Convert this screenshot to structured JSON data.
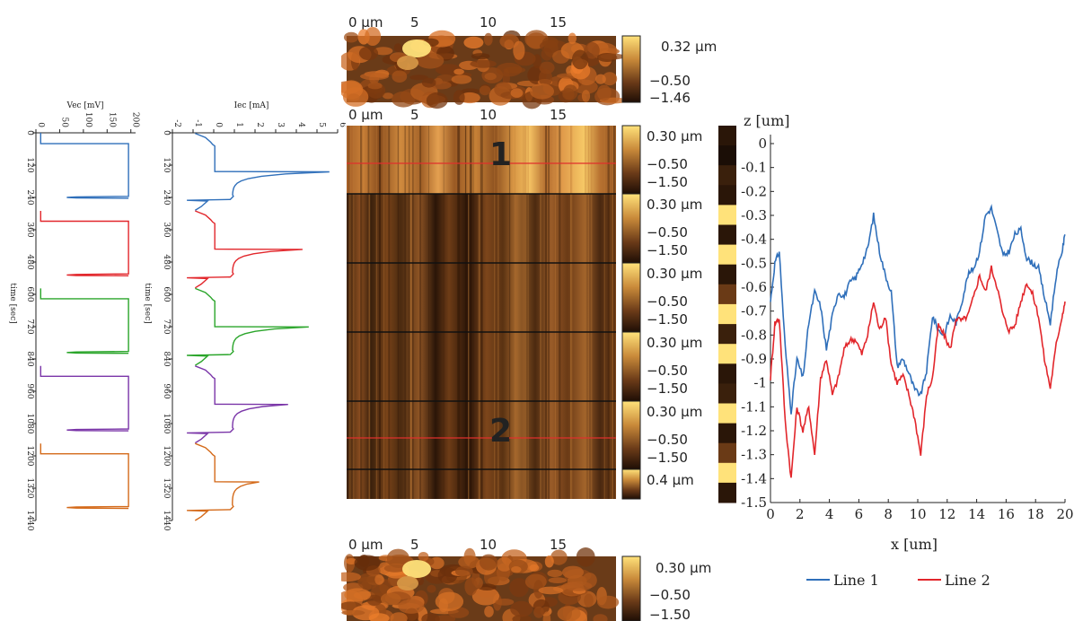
{
  "colors": {
    "line1": "#2f6fba",
    "line2": "#e2262b",
    "blue": "#2f6fba",
    "red": "#e2262b",
    "green": "#2aa52a",
    "purple": "#7a35a8",
    "orange": "#d46a1a",
    "marker": "#e0302c",
    "afm_dark": "#2b1608",
    "afm_mid": "#a8612a",
    "afm_light": "#ffe27a"
  },
  "afm_top": {
    "x_ticks": [
      "0 µm",
      "5",
      "10",
      "15"
    ],
    "colorbar_labels": [
      "0.32 µm",
      "−0.50",
      "−1.46"
    ]
  },
  "afm_main": {
    "x_ticks": [
      "0 µm",
      "5",
      "10",
      "15"
    ],
    "markers": [
      "1",
      "2"
    ],
    "segments": [
      {
        "labels": [
          "0.30 µm",
          "−0.50",
          "−1.50"
        ]
      },
      {
        "labels": [
          "0.30 µm",
          "−0.50",
          "−1.50"
        ]
      },
      {
        "labels": [
          "0.30 µm",
          "−0.50",
          "−1.50"
        ]
      },
      {
        "labels": [
          "0.30 µm",
          "−0.50",
          "−1.50"
        ]
      },
      {
        "labels": [
          "0.30 µm",
          "−0.50",
          "−1.50"
        ]
      },
      {
        "labels": [
          "0.4 µm"
        ]
      }
    ]
  },
  "afm_bottom": {
    "x_ticks": [
      "0 µm",
      "5",
      "10",
      "15"
    ],
    "colorbar_labels": [
      "0.30 µm",
      "−0.50",
      "−1.50"
    ]
  },
  "chart_data": [
    {
      "type": "line",
      "xlabel": "time [sec]",
      "ylabel": "Vec [mV]",
      "x_ticks": [
        0,
        120,
        240,
        360,
        480,
        600,
        720,
        840,
        960,
        1080,
        1200,
        1320,
        1440
      ],
      "y_ticks": [
        0,
        50,
        100,
        150,
        200
      ],
      "xlim": [
        0,
        1440
      ],
      "ylim": [
        0,
        210
      ],
      "cycles": [
        {
          "color": "blue",
          "start": 0,
          "end": 288
        },
        {
          "color": "red",
          "start": 288,
          "end": 576
        },
        {
          "color": "green",
          "start": 576,
          "end": 864
        },
        {
          "color": "purple",
          "start": 864,
          "end": 1152
        },
        {
          "color": "orange",
          "start": 1152,
          "end": 1440
        }
      ],
      "low_mV": 10,
      "high_mV": 195,
      "dip_mV": 85
    },
    {
      "type": "line",
      "xlabel": "time [sec]",
      "ylabel": "Iec [mA]",
      "x_ticks": [
        0,
        120,
        240,
        360,
        480,
        600,
        720,
        840,
        960,
        1080,
        1200,
        1320,
        1440
      ],
      "y_ticks": [
        -2,
        -1,
        0,
        1,
        2,
        3,
        4,
        5,
        6
      ],
      "xlim": [
        0,
        1440
      ],
      "ylim": [
        -2,
        6
      ],
      "cycles": [
        {
          "color": "blue",
          "start": 0,
          "end": 288,
          "peak": 5.6
        },
        {
          "color": "red",
          "start": 288,
          "end": 576,
          "peak": 4.3
        },
        {
          "color": "green",
          "start": 576,
          "end": 864,
          "peak": 4.6
        },
        {
          "color": "purple",
          "start": 864,
          "end": 1152,
          "peak": 3.6
        },
        {
          "color": "orange",
          "start": 1152,
          "end": 1440,
          "peak": 2.2
        }
      ]
    },
    {
      "type": "line",
      "xlabel": "x [um]",
      "ylabel": "z [um]",
      "xlim": [
        0,
        20
      ],
      "ylim": [
        -1.5,
        0
      ],
      "x_ticks": [
        0,
        2,
        4,
        6,
        8,
        10,
        12,
        14,
        16,
        18,
        20
      ],
      "y_ticks": [
        0,
        -0.1,
        -0.2,
        -0.3,
        -0.4,
        -0.5,
        -0.6,
        -0.7,
        -0.8,
        -0.9,
        -1,
        -1.1,
        -1.2,
        -1.3,
        -1.4,
        -1.5
      ],
      "legend_placement": "bottom",
      "series": [
        {
          "name": "Line 1",
          "color": "line1",
          "x": [
            0,
            0.3,
            0.6,
            1.0,
            1.4,
            1.8,
            2.2,
            2.6,
            3.0,
            3.4,
            3.8,
            4.2,
            4.6,
            5.0,
            5.4,
            5.8,
            6.2,
            6.6,
            7.0,
            7.4,
            7.8,
            8.2,
            8.6,
            9.0,
            9.4,
            9.8,
            10.2,
            10.6,
            11.0,
            11.4,
            11.8,
            12.2,
            12.6,
            13.0,
            13.4,
            13.8,
            14.2,
            14.6,
            15.0,
            15.4,
            15.8,
            16.2,
            16.6,
            17.0,
            17.4,
            17.8,
            18.2,
            18.6,
            19.0,
            19.4,
            19.8,
            20.0
          ],
          "y": [
            -0.66,
            -0.5,
            -0.45,
            -0.85,
            -1.12,
            -0.9,
            -0.98,
            -0.75,
            -0.62,
            -0.68,
            -0.86,
            -0.72,
            -0.62,
            -0.64,
            -0.58,
            -0.56,
            -0.5,
            -0.44,
            -0.3,
            -0.45,
            -0.55,
            -0.62,
            -0.93,
            -0.9,
            -0.96,
            -1.03,
            -1.05,
            -0.95,
            -0.72,
            -0.78,
            -0.8,
            -0.72,
            -0.75,
            -0.66,
            -0.55,
            -0.52,
            -0.45,
            -0.3,
            -0.27,
            -0.37,
            -0.47,
            -0.45,
            -0.38,
            -0.36,
            -0.48,
            -0.5,
            -0.52,
            -0.64,
            -0.75,
            -0.55,
            -0.45,
            -0.38
          ]
        },
        {
          "name": "Line 2",
          "color": "line2",
          "x": [
            0,
            0.3,
            0.6,
            1.0,
            1.4,
            1.8,
            2.2,
            2.6,
            3.0,
            3.4,
            3.8,
            4.2,
            4.6,
            5.0,
            5.4,
            5.8,
            6.2,
            6.6,
            7.0,
            7.4,
            7.8,
            8.2,
            8.6,
            9.0,
            9.4,
            9.8,
            10.2,
            10.6,
            11.0,
            11.4,
            11.8,
            12.2,
            12.6,
            13.0,
            13.4,
            13.8,
            14.2,
            14.6,
            15.0,
            15.4,
            15.8,
            16.2,
            16.6,
            17.0,
            17.4,
            17.8,
            18.2,
            18.6,
            19.0,
            19.4,
            19.8,
            20.0
          ],
          "y": [
            -0.98,
            -0.75,
            -0.73,
            -1.16,
            -1.4,
            -1.1,
            -1.2,
            -1.1,
            -1.3,
            -0.98,
            -0.9,
            -1.05,
            -0.98,
            -0.86,
            -0.82,
            -0.82,
            -0.88,
            -0.8,
            -0.66,
            -0.78,
            -0.72,
            -0.92,
            -1.0,
            -0.97,
            -1.05,
            -1.15,
            -1.3,
            -1.05,
            -0.98,
            -0.76,
            -0.8,
            -0.86,
            -0.73,
            -0.74,
            -0.72,
            -0.64,
            -0.55,
            -0.62,
            -0.52,
            -0.6,
            -0.72,
            -0.78,
            -0.76,
            -0.66,
            -0.58,
            -0.63,
            -0.72,
            -0.9,
            -1.02,
            -0.84,
            -0.72,
            -0.66
          ]
        }
      ]
    }
  ]
}
